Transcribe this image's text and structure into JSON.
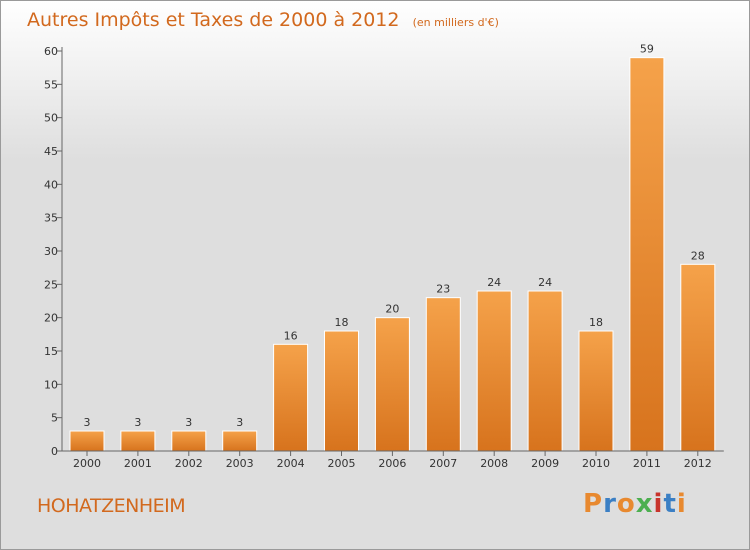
{
  "chart_data": {
    "type": "bar",
    "title": "Autres Impôts et Taxes de 2000 à 2012",
    "subtitle": "(en milliers d'€)",
    "categories": [
      "2000",
      "2001",
      "2002",
      "2003",
      "2004",
      "2005",
      "2006",
      "2007",
      "2008",
      "2009",
      "2010",
      "2011",
      "2012"
    ],
    "values": [
      3,
      3,
      3,
      3,
      16,
      18,
      20,
      23,
      24,
      24,
      18,
      59,
      28
    ],
    "ylim": [
      0,
      60
    ],
    "yticks": [
      0,
      5,
      10,
      15,
      20,
      25,
      30,
      35,
      40,
      45,
      50,
      55,
      60
    ],
    "grid": false,
    "data_labels": true,
    "bar_color": "#e8892f"
  },
  "footer": {
    "commune": "HOHATZENHEIM",
    "logo": "Proxiti"
  },
  "colors": {
    "title": "#d2691e",
    "bar_light": "#f5a24a",
    "bar_dark": "#d7731d",
    "logo_letters": [
      "#e8892f",
      "#3b7fc4",
      "#e8892f",
      "#4caf50",
      "#c8342c",
      "#3b7fc4",
      "#e8892f"
    ]
  }
}
